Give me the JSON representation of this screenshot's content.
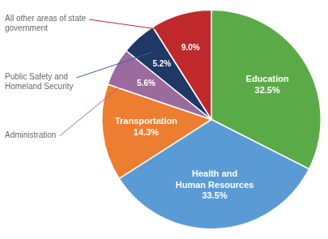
{
  "chart_data": {
    "type": "pie",
    "categories": [
      "Education",
      "Health and\nHuman Resources",
      "Transportation",
      "Administration",
      "Public Safety and\nHomeland Security",
      "All other areas of state\ngovernment"
    ],
    "values": [
      32.5,
      33.5,
      14.3,
      5.6,
      5.2,
      9.0
    ],
    "value_labels": [
      "32.5%",
      "33.5%",
      "14.3%",
      "5.6%",
      "5.2%",
      "9.0%"
    ],
    "colors": [
      "#5aab47",
      "#5b9bd5",
      "#ed7d31",
      "#9b6b9e",
      "#1f3864",
      "#c0292b"
    ],
    "data_labels": true,
    "annotations": [
      {
        "text": "All other areas of state\ngovernment",
        "color": "#c0292b"
      },
      {
        "text": "Public Safety and\nHomeland Security",
        "color": "#3b5ea6"
      },
      {
        "text": "Administration",
        "color": "#9b6b9e"
      }
    ]
  }
}
